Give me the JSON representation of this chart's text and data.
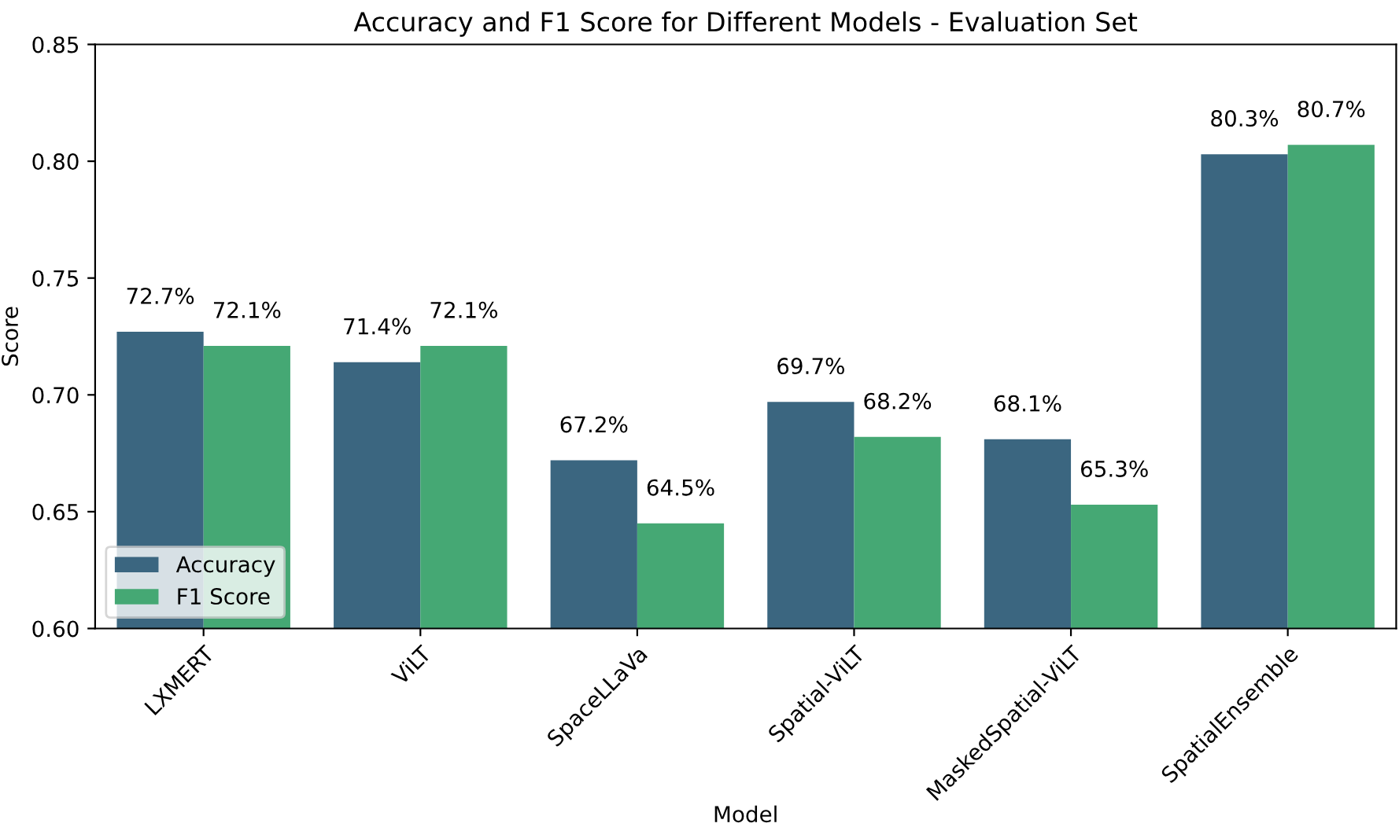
{
  "chart_data": {
    "type": "bar",
    "title": "Accuracy and F1 Score for Different Models - Evaluation Set",
    "xlabel": "Model",
    "ylabel": "Score",
    "categories": [
      "LXMERT",
      "ViLT",
      "SpaceLLaVa",
      "Spatial-ViLT",
      "MaskedSpatial-ViLT",
      "SpatialEnsemble"
    ],
    "series": [
      {
        "name": "Accuracy",
        "color": "#3b6680",
        "values": [
          0.727,
          0.714,
          0.672,
          0.697,
          0.681,
          0.803
        ],
        "value_labels": [
          "72.7%",
          "71.4%",
          "67.2%",
          "69.7%",
          "68.1%",
          "80.3%"
        ]
      },
      {
        "name": "F1 Score",
        "color": "#45a874",
        "values": [
          0.721,
          0.721,
          0.645,
          0.682,
          0.653,
          0.807
        ],
        "value_labels": [
          "72.1%",
          "72.1%",
          "64.5%",
          "68.2%",
          "65.3%",
          "80.7%"
        ]
      }
    ],
    "ylim": [
      0.6,
      0.85
    ],
    "yticks": [
      {
        "value": 0.6,
        "label": "0.60"
      },
      {
        "value": 0.65,
        "label": "0.65"
      },
      {
        "value": 0.7,
        "label": "0.70"
      },
      {
        "value": 0.75,
        "label": "0.75"
      },
      {
        "value": 0.8,
        "label": "0.80"
      },
      {
        "value": 0.85,
        "label": "0.85"
      }
    ],
    "legend": "bottom left",
    "grid": false
  }
}
